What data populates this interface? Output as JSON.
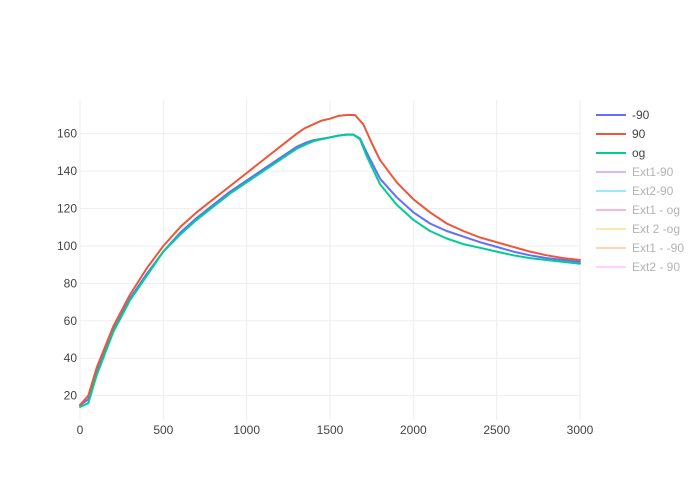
{
  "chart_data": {
    "type": "line",
    "title": "",
    "xlabel": "",
    "ylabel": "",
    "xlim": [
      0,
      3000
    ],
    "ylim": [
      7,
      178
    ],
    "x_ticks": [
      0,
      500,
      1000,
      1500,
      2000,
      2500,
      3000
    ],
    "y_ticks": [
      20,
      40,
      60,
      80,
      100,
      120,
      140,
      160
    ],
    "grid": true,
    "legend_position": "right",
    "series": [
      {
        "name": "-90",
        "color": "#636efa",
        "visible": true,
        "x": [
          0,
          50,
          100,
          200,
          300,
          400,
          500,
          600,
          700,
          800,
          900,
          1000,
          1100,
          1200,
          1300,
          1350,
          1400,
          1500,
          1550,
          1600,
          1640,
          1680,
          1720,
          1800,
          1900,
          2000,
          2100,
          2200,
          2300,
          2400,
          2500,
          2600,
          2700,
          2800,
          2900,
          3000
        ],
        "y": [
          15,
          18,
          33,
          55,
          72,
          85,
          97,
          107,
          115,
          122,
          129,
          135,
          141,
          147,
          153,
          155,
          156.5,
          158,
          159,
          159.5,
          159.5,
          157.5,
          150,
          136,
          126,
          118,
          112,
          108,
          105,
          102,
          99.5,
          97,
          95,
          93.5,
          92.5,
          91.5
        ]
      },
      {
        "name": "90",
        "color": "#ef553b",
        "visible": true,
        "x": [
          0,
          50,
          100,
          200,
          300,
          400,
          500,
          600,
          700,
          800,
          900,
          1000,
          1100,
          1200,
          1300,
          1350,
          1400,
          1450,
          1500,
          1550,
          1600,
          1650,
          1700,
          1750,
          1800,
          1900,
          2000,
          2100,
          2200,
          2300,
          2400,
          2500,
          2600,
          2700,
          2800,
          2900,
          3000
        ],
        "y": [
          15,
          20,
          35,
          57,
          74,
          88,
          100,
          110,
          118,
          125,
          132,
          139,
          146,
          153,
          160,
          163,
          165,
          167,
          168,
          169.5,
          170,
          170,
          165,
          155,
          146,
          134,
          125,
          118,
          112,
          108,
          104.5,
          102,
          99.5,
          97,
          95,
          93.5,
          92.5
        ]
      },
      {
        "name": "og",
        "color": "#00cc96",
        "visible": true,
        "x": [
          0,
          50,
          100,
          200,
          300,
          400,
          500,
          600,
          700,
          800,
          900,
          1000,
          1100,
          1200,
          1300,
          1350,
          1400,
          1500,
          1550,
          1600,
          1640,
          1680,
          1720,
          1800,
          1900,
          2000,
          2100,
          2200,
          2300,
          2400,
          2500,
          2600,
          2700,
          2800,
          2900,
          3000
        ],
        "y": [
          14,
          16,
          31,
          54,
          71,
          84,
          97,
          106,
          114,
          121,
          128,
          134,
          140,
          146,
          152,
          154,
          156,
          158,
          159,
          159.5,
          159.5,
          157,
          148,
          133,
          122,
          114,
          108,
          104,
          101,
          99,
          97,
          95,
          93.5,
          92.5,
          91.5,
          90.5
        ]
      },
      {
        "name": "Ext1-90",
        "color": "#ab63fa",
        "visible": false
      },
      {
        "name": "Ext2-90",
        "color": "#19d3f3",
        "visible": false
      },
      {
        "name": "Ext1 - og",
        "color": "#ff6692",
        "visible": false
      },
      {
        "name": "Ext 2 -og",
        "color": "#fecb52",
        "visible": false
      },
      {
        "name": "Ext1 - -90",
        "color": "#ffa15a",
        "visible": false
      },
      {
        "name": "Ext2 - 90",
        "color": "#ff97ff",
        "visible": false
      }
    ]
  },
  "colors": {
    "grid": "#eeeeee",
    "tick_text": "#444444",
    "legend_text_visible": "#444444",
    "legend_text_hidden": "#b3b3b3"
  }
}
